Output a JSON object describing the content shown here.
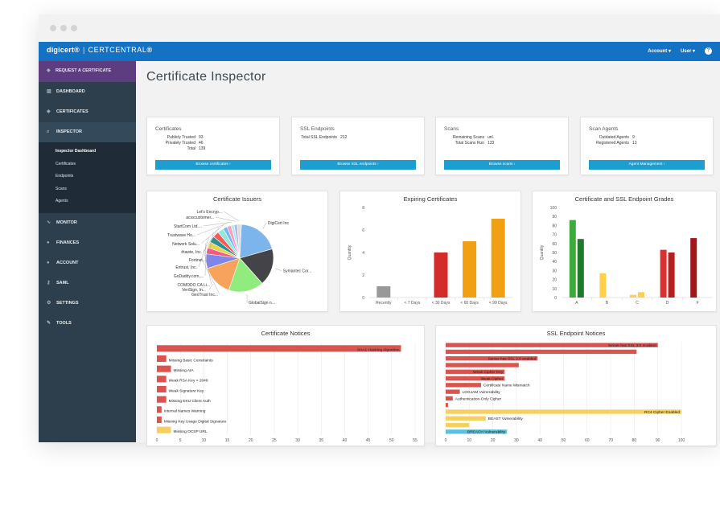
{
  "app": {
    "brand": "digicert",
    "product": "CERTCENTRAL",
    "account": "Account",
    "user": "User",
    "help": "?"
  },
  "sidebar": {
    "request": "REQUEST A CERTIFICATE",
    "items": [
      "DASHBOARD",
      "CERTIFICATES",
      "INSPECTOR",
      "MONITOR",
      "FINANCES",
      "ACCOUNT",
      "SAML",
      "SETTINGS",
      "TOOLS"
    ],
    "sub": [
      "Inspector Dashboard",
      "Certificates",
      "Endpoints",
      "Scans",
      "Agents"
    ]
  },
  "page": {
    "title": "Certificate Inspector"
  },
  "summary": [
    {
      "title": "Certificates",
      "rows": [
        [
          "Publicly Trusted",
          "93"
        ],
        [
          "Privately Trusted",
          "46"
        ],
        [
          "Total",
          "139"
        ]
      ],
      "button": "Browse certificates ›"
    },
    {
      "title": "SSL Endpoints",
      "rows": [
        [
          "Total SSL Endpoints",
          "212"
        ]
      ],
      "button": "Browse SSL endpoints ›"
    },
    {
      "title": "Scans",
      "rows": [
        [
          "Remaining Scans",
          "unl."
        ],
        [
          "Total Scans Run",
          "133"
        ]
      ],
      "button": "Browse scans ›"
    },
    {
      "title": "Scan Agents",
      "rows": [
        [
          "Outdated Agents",
          "9"
        ],
        [
          "Registered Agents",
          "13"
        ]
      ],
      "button": "Agent Management ›"
    }
  ],
  "chart_data": [
    {
      "type": "pie",
      "title": "Certificate Issuers",
      "labels": [
        "DigiCert Inc",
        "Symantec Cor...",
        "GlobalSign n...",
        "VeriSign, In...",
        "GeoTrust Inc...",
        "COMODO CA Li...",
        "GoDaddy.com,...",
        "Entrust, Inc.",
        "Fortinet...",
        "thawte, Inc.",
        "Network Solu...",
        "Trustwave Ho...",
        "StartCom Ltd....",
        "acsscustomer...",
        "Let's Encryp..."
      ],
      "values": [
        20,
        18,
        17,
        15,
        7,
        3,
        3,
        3,
        3,
        3,
        2,
        2,
        1.5,
        1.5,
        2
      ],
      "colors": [
        "#7cb5ec",
        "#434348",
        "#90ed7d",
        "#f7a35c",
        "#8085e9",
        "#f15c80",
        "#e4d354",
        "#2b908f",
        "#f45b5b",
        "#91e8e1",
        "#7cb5ec",
        "#ff9ac3",
        "#aaeeee",
        "#b5b5e0",
        "#dddddd"
      ]
    },
    {
      "type": "bar",
      "title": "Expiring Certificates",
      "ylabel": "Quantity",
      "ylim": [
        0,
        8
      ],
      "categories": [
        "Recently",
        "< 7 Days",
        "< 30 Days",
        "< 60 Days",
        "< 90 Days"
      ],
      "values": [
        1,
        0,
        4,
        5,
        7
      ],
      "colors": [
        "#999999",
        "#999999",
        "#d42b2b",
        "#f0a010",
        "#f0a010"
      ]
    },
    {
      "type": "bar",
      "title": "Certificate and SSL Endpoint Grades",
      "ylabel": "Quantity",
      "ylim": [
        0,
        100
      ],
      "categories": [
        "A",
        "B",
        "C",
        "D",
        "F"
      ],
      "series": [
        {
          "values": [
            86,
            27,
            3,
            53,
            66
          ]
        },
        {
          "values": [
            65,
            0,
            6,
            50,
            0
          ]
        }
      ],
      "colors": [
        [
          "#3cab3c",
          "#ffd04a",
          "#ffd04a",
          "#d93030",
          "#a01818"
        ],
        [
          "#1f7a2c",
          "#ffd04a",
          "#ffd04a",
          "#b22020",
          "#a01818"
        ]
      ]
    },
    {
      "type": "bar",
      "orientation": "horizontal",
      "title": "Certificate Notices",
      "xlim": [
        0,
        55
      ],
      "categories": [
        "SHA1 Hashing Algorithm",
        "Missing Basic Constraints",
        "Missing AIA",
        "Weak RSA Key < 2048",
        "Weak Signature Key",
        "Missing EKU Client Auth",
        "Internal Names Warning",
        "Missing Key Usage Digital Signature",
        "Missing OCSP URL"
      ],
      "values": [
        52,
        2,
        3,
        2,
        2,
        2,
        1,
        1,
        3
      ],
      "colors": [
        "#d9534f",
        "#d9534f",
        "#d9534f",
        "#d9534f",
        "#d9534f",
        "#d9534f",
        "#d9534f",
        "#d9534f",
        "#f5d060"
      ],
      "ticks": [
        0,
        5,
        10,
        15,
        20,
        25,
        30,
        35,
        40,
        45,
        50,
        55
      ]
    },
    {
      "type": "bar",
      "orientation": "horizontal",
      "title": "SSL Endpoint Notices",
      "xlim": [
        0,
        100
      ],
      "categories": [
        "Server has SSL 3.0 enabled",
        "",
        "Server has SSL 2.0 enabled",
        "",
        "Weak Cipher Key",
        "Weak Cipher",
        "Certificate Name Mismatch",
        "LOGJAM Vulnerability",
        "Authentication-Only Cipher",
        "",
        "RC4 Cipher Enabled",
        "BEAST Vulnerability",
        "",
        "BREACH Vulnerability"
      ],
      "values": [
        90,
        81,
        39,
        31,
        25,
        25,
        15,
        6,
        3,
        1,
        100,
        17,
        10,
        26
      ],
      "colors": [
        "#d9534f",
        "#d9534f",
        "#d9534f",
        "#d9534f",
        "#d9534f",
        "#d9534f",
        "#d9534f",
        "#d9534f",
        "#d9534f",
        "#d9534f",
        "#f5d060",
        "#f5d060",
        "#f5d060",
        "#5bc0de"
      ],
      "ticks": [
        0,
        10,
        20,
        30,
        40,
        50,
        60,
        70,
        80,
        90,
        100
      ]
    }
  ]
}
